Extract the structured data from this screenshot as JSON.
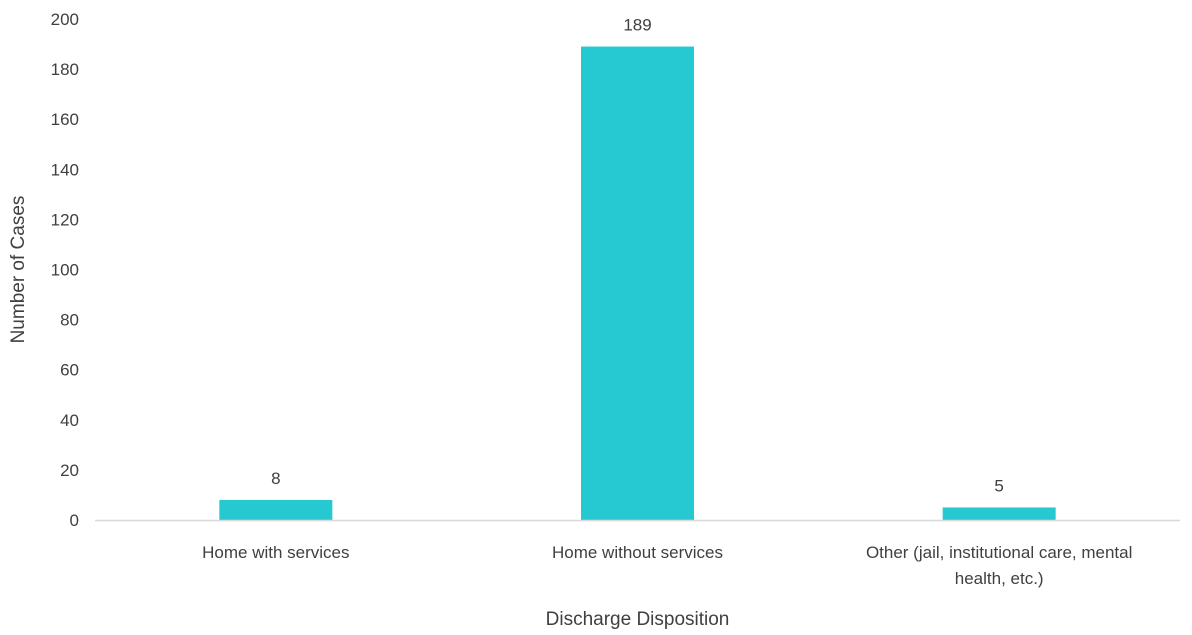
{
  "chart_data": {
    "type": "bar",
    "title": "",
    "xlabel": "Discharge Disposition",
    "ylabel": "Number of Cases",
    "ylim": [
      0,
      200
    ],
    "yticks": [
      0,
      20,
      40,
      60,
      80,
      100,
      120,
      140,
      160,
      180,
      200
    ],
    "categories": [
      [
        "Home with services"
      ],
      [
        "Home without services"
      ],
      [
        "Other (jail, institutional care, mental",
        "health, etc.)"
      ]
    ],
    "values": [
      8,
      189,
      5
    ],
    "data_labels": [
      "8",
      "189",
      "5"
    ],
    "bar_color": "#26C9D1",
    "baseline_color": "#D9D9D9",
    "grid": false,
    "legend": "none"
  }
}
